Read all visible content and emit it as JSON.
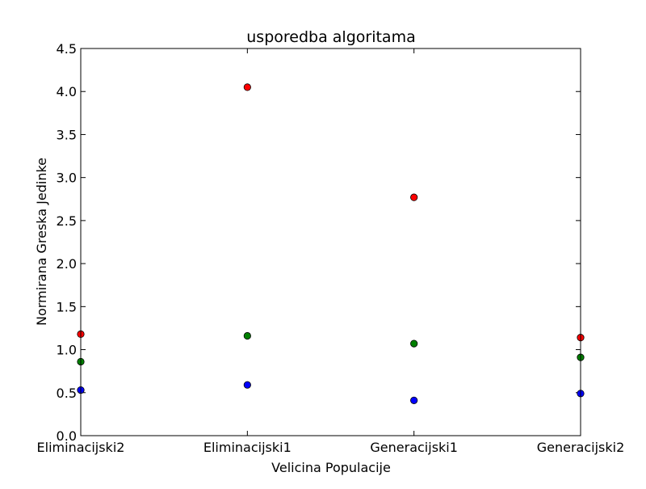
{
  "chart_data": {
    "type": "scatter",
    "title": "usporedba algoritama",
    "xlabel": "Velicina Populacije",
    "ylabel": "Normirana Greska Jedinke",
    "categories": [
      "Eliminacijski2",
      "Eliminacijski1",
      "Generacijski1",
      "Generacijski2"
    ],
    "ylim": [
      0.0,
      4.5
    ],
    "yticks": [
      0.0,
      0.5,
      1.0,
      1.5,
      2.0,
      2.5,
      3.0,
      3.5,
      4.0,
      4.5
    ],
    "ytick_labels": [
      "0.0",
      "0.5",
      "1.0",
      "1.5",
      "2.0",
      "2.5",
      "3.0",
      "3.5",
      "4.0",
      "4.5"
    ],
    "grid": false,
    "series": [
      {
        "color": "#ff0000",
        "values": [
          1.18,
          4.05,
          2.77,
          1.14
        ]
      },
      {
        "color": "#008000",
        "values": [
          0.86,
          1.16,
          1.07,
          0.91
        ]
      },
      {
        "color": "#0000ff",
        "values": [
          0.53,
          0.59,
          0.41,
          0.49
        ]
      }
    ]
  }
}
